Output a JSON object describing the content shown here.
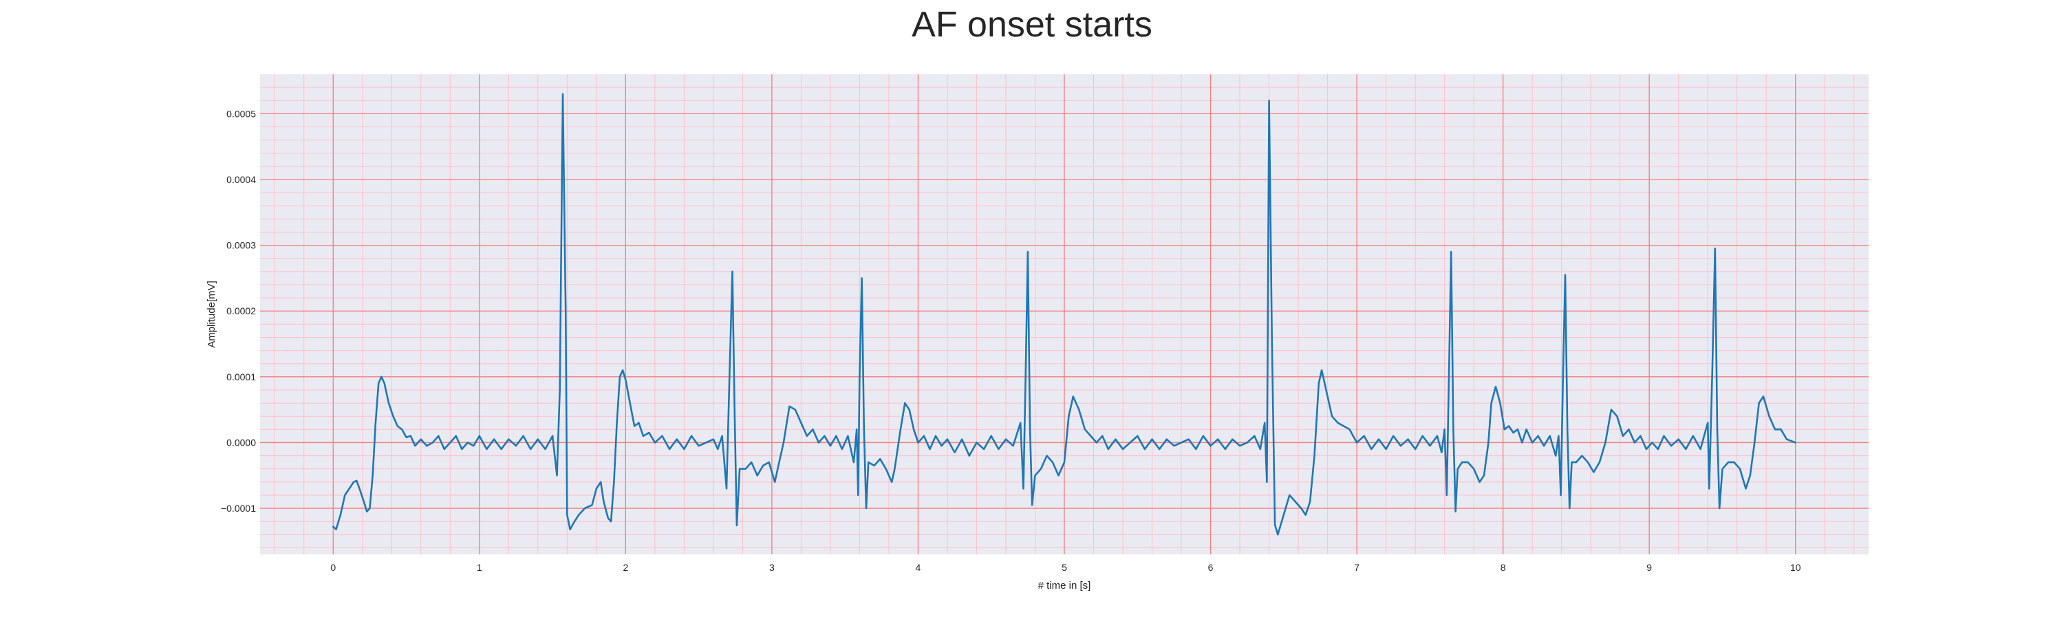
{
  "chart_data": {
    "type": "line",
    "title": "AF onset starts",
    "xlabel": "# time in [s]",
    "ylabel": "Amplitude[mV]",
    "xlim": [
      -0.5,
      10.5
    ],
    "ylim": [
      -0.00017,
      0.00056
    ],
    "x_ticks": [
      0,
      1,
      2,
      3,
      4,
      5,
      6,
      7,
      8,
      9,
      10
    ],
    "x_tick_labels": [
      "0",
      "1",
      "2",
      "3",
      "4",
      "5",
      "6",
      "7",
      "8",
      "9",
      "10"
    ],
    "y_ticks": [
      -0.0001,
      0.0,
      0.0001,
      0.0002,
      0.0003,
      0.0004,
      0.0005
    ],
    "y_tick_labels": [
      "−0.0001",
      "0.0000",
      "0.0001",
      "0.0002",
      "0.0003",
      "0.0004",
      "0.0005"
    ],
    "grid": true,
    "minor_grid": true,
    "background_color": "#EAEAF2",
    "major_grid_color": "#F08080",
    "minor_grid_color": "#FFC0CB",
    "series": [
      {
        "color": "#1F77B4",
        "points": [
          [
            0.0,
            -0.000128
          ],
          [
            0.02,
            -0.000132
          ],
          [
            0.05,
            -0.00011
          ],
          [
            0.08,
            -8e-05
          ],
          [
            0.11,
            -7e-05
          ],
          [
            0.14,
            -6e-05
          ],
          [
            0.16,
            -5.8e-05
          ],
          [
            0.18,
            -7e-05
          ],
          [
            0.21,
            -9e-05
          ],
          [
            0.23,
            -0.000105
          ],
          [
            0.25,
            -0.0001
          ],
          [
            0.27,
            -5e-05
          ],
          [
            0.29,
            3e-05
          ],
          [
            0.31,
            9e-05
          ],
          [
            0.33,
            0.0001
          ],
          [
            0.35,
            9e-05
          ],
          [
            0.38,
            6e-05
          ],
          [
            0.41,
            4e-05
          ],
          [
            0.44,
            2.5e-05
          ],
          [
            0.47,
            2e-05
          ],
          [
            0.5,
            8e-06
          ],
          [
            0.53,
            1e-05
          ],
          [
            0.56,
            -5e-06
          ],
          [
            0.6,
            5e-06
          ],
          [
            0.64,
            -5e-06
          ],
          [
            0.68,
            0.0
          ],
          [
            0.72,
            1e-05
          ],
          [
            0.76,
            -1e-05
          ],
          [
            0.8,
            0.0
          ],
          [
            0.84,
            1e-05
          ],
          [
            0.88,
            -1e-05
          ],
          [
            0.92,
            0.0
          ],
          [
            0.96,
            -5e-06
          ],
          [
            1.0,
            1e-05
          ],
          [
            1.05,
            -1e-05
          ],
          [
            1.1,
            5e-06
          ],
          [
            1.15,
            -1e-05
          ],
          [
            1.2,
            5e-06
          ],
          [
            1.25,
            -5e-06
          ],
          [
            1.3,
            1e-05
          ],
          [
            1.35,
            -1e-05
          ],
          [
            1.4,
            5e-06
          ],
          [
            1.45,
            -1e-05
          ],
          [
            1.5,
            1e-05
          ],
          [
            1.53,
            -5e-05
          ],
          [
            1.55,
            8e-05
          ],
          [
            1.57,
            0.00053
          ],
          [
            1.59,
            0.0002
          ],
          [
            1.6,
            -0.00011
          ],
          [
            1.62,
            -0.000132
          ],
          [
            1.65,
            -0.00012
          ],
          [
            1.68,
            -0.00011
          ],
          [
            1.72,
            -0.0001
          ],
          [
            1.77,
            -9.5e-05
          ],
          [
            1.8,
            -7e-05
          ],
          [
            1.83,
            -6e-05
          ],
          [
            1.85,
            -9e-05
          ],
          [
            1.88,
            -0.000115
          ],
          [
            1.9,
            -0.00012
          ],
          [
            1.92,
            -6e-05
          ],
          [
            1.94,
            3e-05
          ],
          [
            1.96,
            0.0001
          ],
          [
            1.98,
            0.00011
          ],
          [
            2.0,
            9.5e-05
          ],
          [
            2.03,
            6e-05
          ],
          [
            2.06,
            2.5e-05
          ],
          [
            2.09,
            3e-05
          ],
          [
            2.12,
            1e-05
          ],
          [
            2.16,
            1.5e-05
          ],
          [
            2.2,
            0.0
          ],
          [
            2.25,
            1e-05
          ],
          [
            2.3,
            -1e-05
          ],
          [
            2.35,
            5e-06
          ],
          [
            2.4,
            -1e-05
          ],
          [
            2.45,
            1e-05
          ],
          [
            2.5,
            -5e-06
          ],
          [
            2.55,
            0.0
          ],
          [
            2.6,
            5e-06
          ],
          [
            2.63,
            -1e-05
          ],
          [
            2.66,
            1e-05
          ],
          [
            2.69,
            -7e-05
          ],
          [
            2.71,
            0.0001
          ],
          [
            2.73,
            0.00026
          ],
          [
            2.745,
            5e-05
          ],
          [
            2.76,
            -0.000126
          ],
          [
            2.78,
            -4e-05
          ],
          [
            2.82,
            -4e-05
          ],
          [
            2.86,
            -3e-05
          ],
          [
            2.9,
            -5e-05
          ],
          [
            2.94,
            -3.5e-05
          ],
          [
            2.98,
            -3e-05
          ],
          [
            3.02,
            -6e-05
          ],
          [
            3.05,
            -3e-05
          ],
          [
            3.08,
            0.0
          ],
          [
            3.12,
            5.5e-05
          ],
          [
            3.16,
            5e-05
          ],
          [
            3.2,
            3e-05
          ],
          [
            3.24,
            1e-05
          ],
          [
            3.28,
            2e-05
          ],
          [
            3.32,
            0.0
          ],
          [
            3.36,
            1e-05
          ],
          [
            3.4,
            -5e-06
          ],
          [
            3.44,
            1e-05
          ],
          [
            3.48,
            -1e-05
          ],
          [
            3.52,
            1e-05
          ],
          [
            3.56,
            -3e-05
          ],
          [
            3.58,
            2e-05
          ],
          [
            3.59,
            -8e-05
          ],
          [
            3.6,
            0.0001
          ],
          [
            3.615,
            0.00025
          ],
          [
            3.63,
            2e-05
          ],
          [
            3.645,
            -0.0001
          ],
          [
            3.66,
            -3e-05
          ],
          [
            3.7,
            -3.5e-05
          ],
          [
            3.74,
            -2.5e-05
          ],
          [
            3.78,
            -4e-05
          ],
          [
            3.82,
            -6e-05
          ],
          [
            3.84,
            -4e-05
          ],
          [
            3.88,
            2e-05
          ],
          [
            3.91,
            6e-05
          ],
          [
            3.94,
            5e-05
          ],
          [
            3.97,
            2e-05
          ],
          [
            4.0,
            0.0
          ],
          [
            4.04,
            1e-05
          ],
          [
            4.08,
            -1e-05
          ],
          [
            4.12,
            1e-05
          ],
          [
            4.16,
            -5e-06
          ],
          [
            4.2,
            5e-06
          ],
          [
            4.25,
            -1.5e-05
          ],
          [
            4.3,
            5e-06
          ],
          [
            4.35,
            -2e-05
          ],
          [
            4.4,
            0.0
          ],
          [
            4.45,
            -1e-05
          ],
          [
            4.5,
            1e-05
          ],
          [
            4.55,
            -1e-05
          ],
          [
            4.6,
            5e-06
          ],
          [
            4.65,
            -5e-06
          ],
          [
            4.7,
            3e-05
          ],
          [
            4.72,
            -7e-05
          ],
          [
            4.735,
            0.0001
          ],
          [
            4.75,
            0.00029
          ],
          [
            4.765,
            2e-05
          ],
          [
            4.78,
            -9.5e-05
          ],
          [
            4.8,
            -5e-05
          ],
          [
            4.84,
            -4e-05
          ],
          [
            4.88,
            -2e-05
          ],
          [
            4.92,
            -3e-05
          ],
          [
            4.96,
            -5e-05
          ],
          [
            5.0,
            -3e-05
          ],
          [
            5.03,
            4e-05
          ],
          [
            5.06,
            7e-05
          ],
          [
            5.1,
            5e-05
          ],
          [
            5.14,
            2e-05
          ],
          [
            5.18,
            1e-05
          ],
          [
            5.22,
            0.0
          ],
          [
            5.26,
            1e-05
          ],
          [
            5.3,
            -1e-05
          ],
          [
            5.35,
            5e-06
          ],
          [
            5.4,
            -1e-05
          ],
          [
            5.45,
            0.0
          ],
          [
            5.5,
            1e-05
          ],
          [
            5.55,
            -1e-05
          ],
          [
            5.6,
            5e-06
          ],
          [
            5.65,
            -1e-05
          ],
          [
            5.7,
            5e-06
          ],
          [
            5.75,
            -5e-06
          ],
          [
            5.8,
            0.0
          ],
          [
            5.85,
            5e-06
          ],
          [
            5.9,
            -1e-05
          ],
          [
            5.95,
            1e-05
          ],
          [
            6.0,
            -5e-06
          ],
          [
            6.05,
            5e-06
          ],
          [
            6.1,
            -1e-05
          ],
          [
            6.15,
            5e-06
          ],
          [
            6.2,
            -5e-06
          ],
          [
            6.25,
            0.0
          ],
          [
            6.3,
            1e-05
          ],
          [
            6.34,
            -1e-05
          ],
          [
            6.37,
            3e-05
          ],
          [
            6.385,
            -6e-05
          ],
          [
            6.4,
            0.00052
          ],
          [
            6.42,
            0.00015
          ],
          [
            6.44,
            -0.000125
          ],
          [
            6.46,
            -0.00014
          ],
          [
            6.5,
            -0.00011
          ],
          [
            6.54,
            -8e-05
          ],
          [
            6.58,
            -9e-05
          ],
          [
            6.62,
            -0.0001
          ],
          [
            6.65,
            -0.00011
          ],
          [
            6.68,
            -9e-05
          ],
          [
            6.71,
            -2e-05
          ],
          [
            6.74,
            9e-05
          ],
          [
            6.76,
            0.00011
          ],
          [
            6.79,
            8e-05
          ],
          [
            6.83,
            4e-05
          ],
          [
            6.87,
            3e-05
          ],
          [
            6.91,
            2.5e-05
          ],
          [
            6.95,
            2e-05
          ],
          [
            7.0,
            0.0
          ],
          [
            7.05,
            1e-05
          ],
          [
            7.1,
            -1e-05
          ],
          [
            7.15,
            5e-06
          ],
          [
            7.2,
            -1e-05
          ],
          [
            7.25,
            1e-05
          ],
          [
            7.3,
            -5e-06
          ],
          [
            7.35,
            5e-06
          ],
          [
            7.4,
            -1e-05
          ],
          [
            7.45,
            1e-05
          ],
          [
            7.5,
            -5e-06
          ],
          [
            7.55,
            1e-05
          ],
          [
            7.58,
            -1.5e-05
          ],
          [
            7.6,
            2e-05
          ],
          [
            7.615,
            -8e-05
          ],
          [
            7.63,
            0.0001
          ],
          [
            7.645,
            0.00029
          ],
          [
            7.66,
            2e-05
          ],
          [
            7.675,
            -0.000105
          ],
          [
            7.69,
            -4e-05
          ],
          [
            7.72,
            -3e-05
          ],
          [
            7.76,
            -3e-05
          ],
          [
            7.8,
            -4e-05
          ],
          [
            7.84,
            -6e-05
          ],
          [
            7.87,
            -5e-05
          ],
          [
            7.9,
            0.0
          ],
          [
            7.92,
            6e-05
          ],
          [
            7.95,
            8.5e-05
          ],
          [
            7.98,
            6e-05
          ],
          [
            8.01,
            2e-05
          ],
          [
            8.04,
            2.5e-05
          ],
          [
            8.07,
            1.5e-05
          ],
          [
            8.1,
            2e-05
          ],
          [
            8.13,
            0.0
          ],
          [
            8.16,
            2e-05
          ],
          [
            8.2,
            0.0
          ],
          [
            8.24,
            1e-05
          ],
          [
            8.28,
            -5e-06
          ],
          [
            8.32,
            1e-05
          ],
          [
            8.36,
            -2e-05
          ],
          [
            8.38,
            1e-05
          ],
          [
            8.395,
            -8e-05
          ],
          [
            8.41,
            0.0001
          ],
          [
            8.425,
            0.000255
          ],
          [
            8.44,
            2e-05
          ],
          [
            8.455,
            -0.0001
          ],
          [
            8.47,
            -3e-05
          ],
          [
            8.5,
            -3e-05
          ],
          [
            8.54,
            -2e-05
          ],
          [
            8.58,
            -3e-05
          ],
          [
            8.62,
            -4.5e-05
          ],
          [
            8.66,
            -3e-05
          ],
          [
            8.7,
            0.0
          ],
          [
            8.74,
            5e-05
          ],
          [
            8.78,
            4e-05
          ],
          [
            8.82,
            1e-05
          ],
          [
            8.86,
            2e-05
          ],
          [
            8.9,
            0.0
          ],
          [
            8.94,
            1e-05
          ],
          [
            8.98,
            -1e-05
          ],
          [
            9.02,
            0.0
          ],
          [
            9.06,
            -1e-05
          ],
          [
            9.1,
            1e-05
          ],
          [
            9.15,
            -5e-06
          ],
          [
            9.2,
            5e-06
          ],
          [
            9.25,
            -1e-05
          ],
          [
            9.3,
            1e-05
          ],
          [
            9.35,
            -1e-05
          ],
          [
            9.4,
            3e-05
          ],
          [
            9.41,
            -7e-05
          ],
          [
            9.43,
            0.0001
          ],
          [
            9.45,
            0.000295
          ],
          [
            9.465,
            2e-05
          ],
          [
            9.48,
            -0.0001
          ],
          [
            9.5,
            -4e-05
          ],
          [
            9.54,
            -3e-05
          ],
          [
            9.58,
            -3e-05
          ],
          [
            9.62,
            -4e-05
          ],
          [
            9.66,
            -7e-05
          ],
          [
            9.69,
            -5e-05
          ],
          [
            9.72,
            0.0
          ],
          [
            9.75,
            6e-05
          ],
          [
            9.78,
            7e-05
          ],
          [
            9.82,
            4e-05
          ],
          [
            9.86,
            2e-05
          ],
          [
            9.9,
            2e-05
          ],
          [
            9.94,
            5e-06
          ],
          [
            10.0,
            0.0
          ]
        ]
      }
    ]
  }
}
